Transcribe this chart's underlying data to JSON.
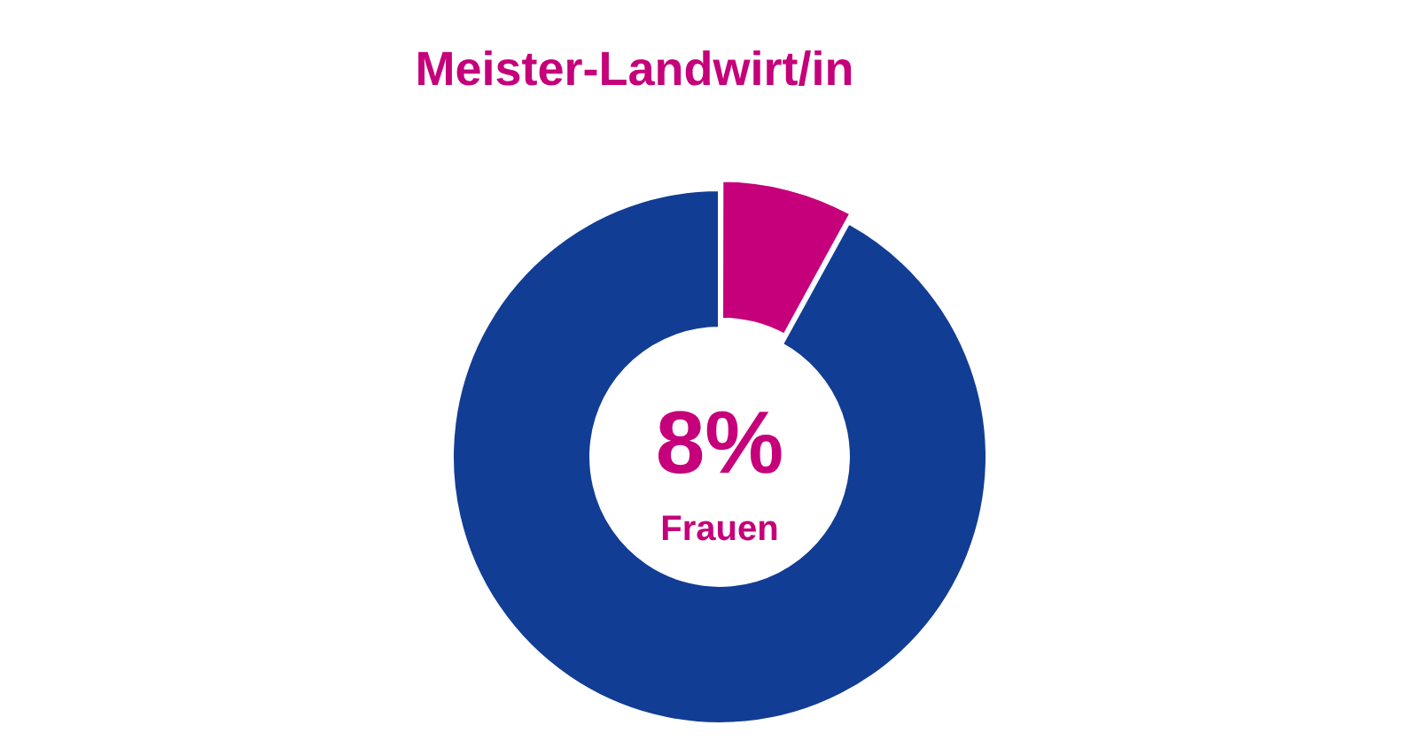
{
  "chart_data": {
    "type": "donut",
    "title": "Meister-Landwirt/in",
    "categories": [
      "Frauen",
      null
    ],
    "values": [
      8,
      92
    ],
    "colors": [
      "#c5007a",
      "#123d94"
    ],
    "value_labels": [
      "8%",
      null
    ],
    "legend": false
  }
}
